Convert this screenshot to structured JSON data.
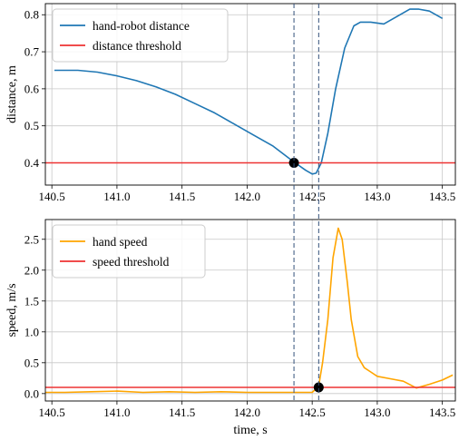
{
  "chart_data": [
    {
      "type": "line",
      "ylabel": "distance, m",
      "xlabel": "",
      "xlim": [
        140.45,
        143.6
      ],
      "ylim": [
        0.34,
        0.83
      ],
      "xticks": [
        "140.5",
        "141.0",
        "141.5",
        "142.0",
        "142.5",
        "143.0",
        "143.5"
      ],
      "yticks": [
        "0.4",
        "0.5",
        "0.6",
        "0.7",
        "0.8"
      ],
      "grid": true,
      "legend": "top-left",
      "series": [
        {
          "name": "hand-robot distance",
          "color": "#1f77b4",
          "x": [
            140.52,
            140.7,
            140.85,
            141.0,
            141.15,
            141.3,
            141.45,
            141.6,
            141.75,
            141.9,
            142.05,
            142.2,
            142.35,
            142.45,
            142.5,
            142.53,
            142.57,
            142.62,
            142.68,
            142.75,
            142.82,
            142.87,
            142.95,
            143.05,
            143.15,
            143.25,
            143.32,
            143.4,
            143.5
          ],
          "y": [
            0.65,
            0.65,
            0.645,
            0.635,
            0.622,
            0.605,
            0.585,
            0.56,
            0.535,
            0.505,
            0.475,
            0.445,
            0.405,
            0.38,
            0.37,
            0.372,
            0.4,
            0.48,
            0.6,
            0.71,
            0.77,
            0.78,
            0.78,
            0.775,
            0.795,
            0.815,
            0.815,
            0.81,
            0.79
          ]
        },
        {
          "name": "distance threshold",
          "color": "#ee3333",
          "x": [
            140.45,
            143.6
          ],
          "y": [
            0.4,
            0.4
          ]
        }
      ],
      "markers": [
        {
          "x": 142.36,
          "y": 0.4
        }
      ],
      "vlines": [
        142.36,
        142.55
      ]
    },
    {
      "type": "line",
      "ylabel": "speed, m/s",
      "xlabel": "time, s",
      "xlim": [
        140.45,
        143.6
      ],
      "ylim": [
        -0.12,
        2.82
      ],
      "xticks": [
        "140.5",
        "141.0",
        "141.5",
        "142.0",
        "142.5",
        "143.0",
        "143.5"
      ],
      "yticks": [
        "0.0",
        "0.5",
        "1.0",
        "1.5",
        "2.0",
        "2.5"
      ],
      "grid": true,
      "legend": "top-left",
      "series": [
        {
          "name": "hand speed",
          "color": "#ffa500",
          "x": [
            140.45,
            140.6,
            140.8,
            141.0,
            141.2,
            141.4,
            141.6,
            141.8,
            142.0,
            142.2,
            142.4,
            142.5,
            142.55,
            142.58,
            142.62,
            142.66,
            142.7,
            142.73,
            142.77,
            142.8,
            142.85,
            142.9,
            142.95,
            143.0,
            143.1,
            143.2,
            143.3,
            143.4,
            143.5,
            143.58
          ],
          "y": [
            0.02,
            0.02,
            0.03,
            0.04,
            0.02,
            0.03,
            0.02,
            0.03,
            0.02,
            0.02,
            0.02,
            0.02,
            0.12,
            0.5,
            1.2,
            2.2,
            2.68,
            2.5,
            1.8,
            1.2,
            0.6,
            0.42,
            0.35,
            0.28,
            0.24,
            0.2,
            0.09,
            0.15,
            0.22,
            0.3
          ]
        },
        {
          "name": "speed threshold",
          "color": "#ee3333",
          "x": [
            140.45,
            143.6
          ],
          "y": [
            0.1,
            0.1
          ]
        }
      ],
      "markers": [
        {
          "x": 142.55,
          "y": 0.1
        }
      ],
      "vlines": [
        142.36,
        142.55
      ]
    }
  ]
}
